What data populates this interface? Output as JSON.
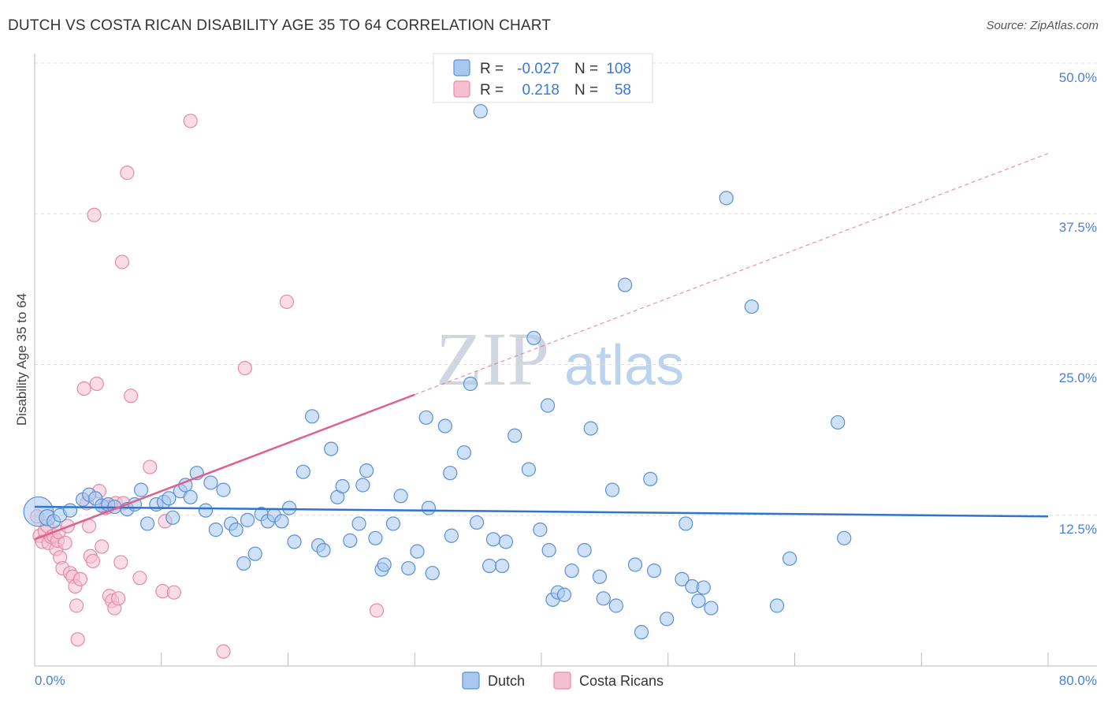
{
  "title": "DUTCH VS COSTA RICAN DISABILITY AGE 35 TO 64 CORRELATION CHART",
  "source": "Source: ZipAtlas.com",
  "watermark": {
    "zip": "ZIP",
    "atlas": "atlas"
  },
  "legend": {
    "rows": [
      {
        "r_label": "R =",
        "r_value": "-0.027",
        "n_label": "N =",
        "n_value": "108"
      },
      {
        "r_label": "R =",
        "r_value": "0.218",
        "n_label": "N =",
        "n_value": "58"
      }
    ]
  },
  "bottom_legend": {
    "dutch": "Dutch",
    "costa": "Costa Ricans"
  },
  "colors": {
    "dutch_fill": "#a8c8f0",
    "dutch_stroke": "#5a8fd6",
    "dutch_line": "#2f74cf",
    "costa_fill": "#f6bfd0",
    "costa_stroke": "#e68aa8",
    "costa_line": "#e0608c",
    "tick_text": "#4a7fd6",
    "grid": "#dddddd"
  },
  "chart_data": {
    "type": "scatter",
    "title": "DUTCH VS COSTA RICAN DISABILITY AGE 35 TO 64 CORRELATION CHART",
    "xlabel": "",
    "ylabel": "Disability Age 35 to 64",
    "xlim": [
      0,
      80
    ],
    "ylim": [
      0,
      50
    ],
    "x_tick_labels": [
      "0.0%",
      "80.0%"
    ],
    "y_ticks": [
      12.5,
      25.0,
      37.5,
      50.0
    ],
    "y_tick_labels": [
      "12.5%",
      "25.0%",
      "37.5%",
      "50.0%"
    ],
    "series": [
      {
        "name": "Dutch",
        "R": -0.027,
        "N": 108,
        "trend": {
          "x": [
            0,
            80
          ],
          "y": [
            13.2,
            12.4
          ]
        },
        "points": [
          [
            0.3,
            12.8,
            2.2
          ],
          [
            1.0,
            12.3,
            1.2
          ],
          [
            1.5,
            12.0,
            1.0
          ],
          [
            2.0,
            12.5,
            1.0
          ],
          [
            2.8,
            12.9,
            1.0
          ],
          [
            3.8,
            13.8,
            1.0
          ],
          [
            4.3,
            14.2,
            1.0
          ],
          [
            4.8,
            13.9,
            1.0
          ],
          [
            5.3,
            13.3,
            1.0
          ],
          [
            5.8,
            13.4,
            1.0
          ],
          [
            6.3,
            13.2,
            1.0
          ],
          [
            7.3,
            13.0,
            1.0
          ],
          [
            7.9,
            13.4,
            1.0
          ],
          [
            8.4,
            14.6,
            1.0
          ],
          [
            8.9,
            11.8,
            1.0
          ],
          [
            9.6,
            13.4,
            1.0
          ],
          [
            10.2,
            13.6,
            1.0
          ],
          [
            10.6,
            13.9,
            1.0
          ],
          [
            10.9,
            12.3,
            1.0
          ],
          [
            11.5,
            14.5,
            1.0
          ],
          [
            11.9,
            15.0,
            1.0
          ],
          [
            12.3,
            14.0,
            1.0
          ],
          [
            12.8,
            16.0,
            1.0
          ],
          [
            13.5,
            12.9,
            1.0
          ],
          [
            13.9,
            15.2,
            1.0
          ],
          [
            14.3,
            11.3,
            1.0
          ],
          [
            14.9,
            14.6,
            1.0
          ],
          [
            15.5,
            11.8,
            1.0
          ],
          [
            15.9,
            11.3,
            1.0
          ],
          [
            16.5,
            8.5,
            1.0
          ],
          [
            16.8,
            12.1,
            1.0
          ],
          [
            17.4,
            9.3,
            1.0
          ],
          [
            17.9,
            12.6,
            1.0
          ],
          [
            18.4,
            12.0,
            1.0
          ],
          [
            18.9,
            12.5,
            1.0
          ],
          [
            19.5,
            12.0,
            1.0
          ],
          [
            20.1,
            13.1,
            1.0
          ],
          [
            20.5,
            10.3,
            1.0
          ],
          [
            21.2,
            16.1,
            1.0
          ],
          [
            21.9,
            20.7,
            1.0
          ],
          [
            22.4,
            10.0,
            1.0
          ],
          [
            22.8,
            9.6,
            1.0
          ],
          [
            23.4,
            18.0,
            1.0
          ],
          [
            23.9,
            14.0,
            1.0
          ],
          [
            24.3,
            14.9,
            1.0
          ],
          [
            24.9,
            10.4,
            1.0
          ],
          [
            25.6,
            11.8,
            1.0
          ],
          [
            25.9,
            15.0,
            1.0
          ],
          [
            26.2,
            16.2,
            1.0
          ],
          [
            26.9,
            10.6,
            1.0
          ],
          [
            27.4,
            8.0,
            1.0
          ],
          [
            27.6,
            8.4,
            1.0
          ],
          [
            28.3,
            11.8,
            1.0
          ],
          [
            28.9,
            14.1,
            1.0
          ],
          [
            29.5,
            8.1,
            1.0
          ],
          [
            30.2,
            9.5,
            1.0
          ],
          [
            30.9,
            20.6,
            1.0
          ],
          [
            31.1,
            13.1,
            1.0
          ],
          [
            31.4,
            7.7,
            1.0
          ],
          [
            32.4,
            19.9,
            1.0
          ],
          [
            32.8,
            16.0,
            1.0
          ],
          [
            32.9,
            10.8,
            1.0
          ],
          [
            33.9,
            17.7,
            1.0
          ],
          [
            34.4,
            23.4,
            1.0
          ],
          [
            34.9,
            11.9,
            1.0
          ],
          [
            35.2,
            46.0,
            1.0
          ],
          [
            35.9,
            8.3,
            1.0
          ],
          [
            36.2,
            10.5,
            1.0
          ],
          [
            36.9,
            8.3,
            1.0
          ],
          [
            37.2,
            10.3,
            1.0
          ],
          [
            37.9,
            19.1,
            1.0
          ],
          [
            39.0,
            16.3,
            1.0
          ],
          [
            39.4,
            27.2,
            1.0
          ],
          [
            39.9,
            11.3,
            1.0
          ],
          [
            40.5,
            21.6,
            1.0
          ],
          [
            40.6,
            9.6,
            1.0
          ],
          [
            40.9,
            5.5,
            1.0
          ],
          [
            41.3,
            6.1,
            1.0
          ],
          [
            41.8,
            5.9,
            1.0
          ],
          [
            42.4,
            7.9,
            1.0
          ],
          [
            43.4,
            9.6,
            1.0
          ],
          [
            43.9,
            19.7,
            1.0
          ],
          [
            44.6,
            7.4,
            1.0
          ],
          [
            44.9,
            5.6,
            1.0
          ],
          [
            45.6,
            14.6,
            1.0
          ],
          [
            45.9,
            5.0,
            1.0
          ],
          [
            46.6,
            31.6,
            1.0
          ],
          [
            47.4,
            8.4,
            1.0
          ],
          [
            47.9,
            2.8,
            1.0
          ],
          [
            48.6,
            15.5,
            1.0
          ],
          [
            48.9,
            7.9,
            1.0
          ],
          [
            49.9,
            3.9,
            1.0
          ],
          [
            51.1,
            7.2,
            1.0
          ],
          [
            51.4,
            11.8,
            1.0
          ],
          [
            51.9,
            6.6,
            1.0
          ],
          [
            52.4,
            5.4,
            1.0
          ],
          [
            52.8,
            6.5,
            1.0
          ],
          [
            53.4,
            4.8,
            1.0
          ],
          [
            54.6,
            38.8,
            1.0
          ],
          [
            56.6,
            29.8,
            1.0
          ],
          [
            58.6,
            5.0,
            1.0
          ],
          [
            59.6,
            8.9,
            1.0
          ],
          [
            63.4,
            20.2,
            1.0
          ],
          [
            63.9,
            10.6,
            1.0
          ]
        ]
      },
      {
        "name": "Costa Ricans",
        "R": 0.218,
        "N": 58,
        "trend": {
          "x": [
            0,
            80
          ],
          "y": [
            10.5,
            42.5
          ]
        },
        "trend_solid_until_x": 30,
        "points": [
          [
            0.2,
            12.4,
            1.0
          ],
          [
            0.4,
            10.8,
            1.0
          ],
          [
            0.6,
            10.3,
            1.0
          ],
          [
            0.8,
            11.2,
            1.0
          ],
          [
            1.0,
            11.6,
            1.0
          ],
          [
            1.1,
            10.2,
            1.0
          ],
          [
            1.3,
            10.7,
            1.0
          ],
          [
            1.5,
            10.8,
            1.0
          ],
          [
            1.7,
            9.7,
            1.0
          ],
          [
            1.8,
            10.4,
            1.0
          ],
          [
            1.9,
            11.1,
            1.0
          ],
          [
            2.0,
            9.0,
            1.0
          ],
          [
            2.2,
            8.1,
            1.0
          ],
          [
            2.4,
            10.2,
            1.0
          ],
          [
            2.6,
            11.6,
            1.0
          ],
          [
            2.8,
            7.7,
            1.0
          ],
          [
            3.0,
            7.4,
            1.0
          ],
          [
            3.2,
            6.6,
            1.0
          ],
          [
            3.3,
            5.0,
            1.0
          ],
          [
            3.4,
            2.2,
            1.0
          ],
          [
            3.6,
            7.2,
            1.0
          ],
          [
            3.9,
            23.0,
            1.0
          ],
          [
            4.1,
            13.5,
            1.0
          ],
          [
            4.3,
            11.6,
            1.0
          ],
          [
            4.4,
            9.1,
            1.0
          ],
          [
            4.6,
            8.7,
            1.0
          ],
          [
            4.7,
            37.4,
            1.0
          ],
          [
            4.9,
            23.4,
            1.0
          ],
          [
            5.1,
            14.5,
            1.0
          ],
          [
            5.3,
            9.9,
            1.0
          ],
          [
            5.6,
            13.1,
            1.0
          ],
          [
            5.8,
            13.2,
            1.0
          ],
          [
            5.9,
            5.8,
            1.0
          ],
          [
            6.1,
            5.4,
            1.0
          ],
          [
            6.3,
            4.8,
            1.0
          ],
          [
            6.4,
            13.5,
            1.0
          ],
          [
            6.6,
            5.6,
            1.0
          ],
          [
            6.8,
            8.6,
            1.0
          ],
          [
            6.9,
            33.5,
            1.0
          ],
          [
            7.0,
            13.5,
            1.0
          ],
          [
            7.3,
            40.9,
            1.0
          ],
          [
            7.6,
            22.4,
            1.0
          ],
          [
            8.3,
            7.3,
            1.0
          ],
          [
            9.1,
            16.5,
            1.0
          ],
          [
            10.1,
            6.2,
            1.0
          ],
          [
            10.3,
            12.0,
            1.0
          ],
          [
            11.0,
            6.1,
            1.0
          ],
          [
            12.3,
            45.2,
            1.0
          ],
          [
            14.9,
            1.2,
            1.0
          ],
          [
            16.6,
            24.7,
            1.0
          ],
          [
            19.9,
            30.2,
            1.0
          ],
          [
            27.0,
            4.6,
            1.0
          ]
        ]
      }
    ]
  }
}
